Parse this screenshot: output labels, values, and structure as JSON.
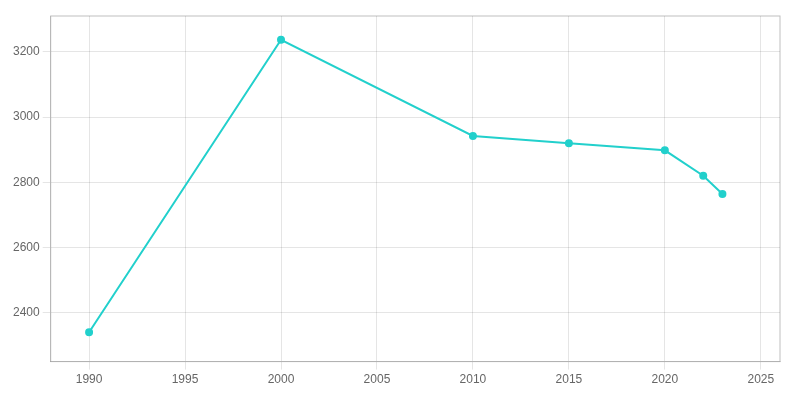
{
  "chart_data": {
    "type": "line",
    "x": [
      1990,
      2000,
      2010,
      2015,
      2020,
      2022,
      2023
    ],
    "values": [
      2340,
      3237,
      2942,
      2920,
      2898,
      2820,
      2764
    ],
    "color": "#22d0cc",
    "marker": "circle",
    "xlim": [
      1988,
      2026
    ],
    "ylim": [
      2250,
      3310
    ],
    "xticks": [
      1990,
      1995,
      2000,
      2005,
      2010,
      2015,
      2020,
      2025
    ],
    "yticks": [
      2400,
      2600,
      2800,
      3000,
      3200
    ],
    "grid": true
  }
}
